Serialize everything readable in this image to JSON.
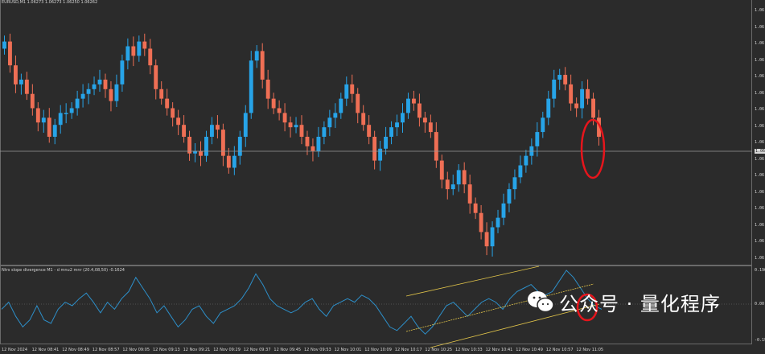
{
  "chart_header": {
    "symbol_line": "EURUSD,M1  1.06273 1.06273 1.06250 1.06262"
  },
  "indicator_header": {
    "text": "Ntrs slope divergence M1 - d mnu2 mnr (20.4,08,50) -0.1624"
  },
  "price_axis": {
    "labels": [
      "1.06",
      "1.06",
      "1.06",
      "1.06",
      "1.06",
      "1.06",
      "1.06",
      "1.06",
      "1.06",
      "1.06",
      "1.06",
      "1.06",
      "1.06",
      "1.06",
      "1.06",
      "1.06"
    ],
    "current_price_label": "1.06"
  },
  "indicator_axis": {
    "labels": [
      "0.196",
      "0.00",
      "-0.196"
    ]
  },
  "time_axis": {
    "labels": [
      "12 Nov 2024",
      "12 Nov 08:41",
      "12 Nov 08:49",
      "12 Nov 08:57",
      "12 Nov 09:05",
      "12 Nov 09:13",
      "12 Nov 09:21",
      "12 Nov 09:29",
      "12 Nov 09:37",
      "12 Nov 09:45",
      "12 Nov 09:53",
      "12 Nov 10:01",
      "12 Nov 10:09",
      "12 Nov 10:17",
      "12 Nov 10:25",
      "12 Nov 10:33",
      "12 Nov 10:41",
      "12 Nov 10:49",
      "12 Nov 10:57",
      "12 Nov 11:05"
    ]
  },
  "watermark": {
    "text": "公众号 · 量化程序"
  },
  "colors": {
    "bull": "#27a4e8",
    "bear": "#ef6f55",
    "indicator_line": "#2d8fc9",
    "trend_line": "#e2c54a",
    "highlight": "#e6151c",
    "price_line": "#9a9a9a"
  },
  "chart_data": {
    "type": "candlestick",
    "symbol": "EURUSD",
    "timeframe": "M1",
    "closes_normalized": [
      0.9,
      0.8,
      0.72,
      0.74,
      0.68,
      0.62,
      0.56,
      0.58,
      0.5,
      0.55,
      0.6,
      0.6,
      0.62,
      0.66,
      0.68,
      0.7,
      0.72,
      0.74,
      0.7,
      0.65,
      0.72,
      0.82,
      0.88,
      0.84,
      0.9,
      0.87,
      0.8,
      0.7,
      0.66,
      0.62,
      0.58,
      0.55,
      0.5,
      0.43,
      0.44,
      0.42,
      0.5,
      0.55,
      0.53,
      0.42,
      0.37,
      0.42,
      0.5,
      0.6,
      0.82,
      0.86,
      0.74,
      0.66,
      0.62,
      0.6,
      0.56,
      0.54,
      0.55,
      0.5,
      0.46,
      0.44,
      0.5,
      0.54,
      0.58,
      0.6,
      0.66,
      0.72,
      0.68,
      0.6,
      0.55,
      0.5,
      0.4,
      0.45,
      0.5,
      0.54,
      0.56,
      0.6,
      0.66,
      0.64,
      0.58,
      0.56,
      0.52,
      0.4,
      0.32,
      0.28,
      0.3,
      0.36,
      0.3,
      0.22,
      0.18,
      0.1,
      0.04,
      0.12,
      0.16,
      0.22,
      0.28,
      0.33,
      0.38,
      0.42,
      0.46,
      0.52,
      0.58,
      0.66,
      0.74,
      0.76,
      0.72,
      0.64,
      0.62,
      0.7,
      0.66,
      0.58,
      0.5
    ],
    "indicator_normalized": [
      0.45,
      0.55,
      0.35,
      0.2,
      0.3,
      0.5,
      0.3,
      0.25,
      0.45,
      0.55,
      0.5,
      0.6,
      0.68,
      0.55,
      0.4,
      0.55,
      0.45,
      0.6,
      0.7,
      0.9,
      0.75,
      0.6,
      0.4,
      0.5,
      0.35,
      0.2,
      0.3,
      0.45,
      0.5,
      0.35,
      0.25,
      0.4,
      0.45,
      0.5,
      0.6,
      0.75,
      0.95,
      0.8,
      0.6,
      0.5,
      0.45,
      0.4,
      0.45,
      0.55,
      0.6,
      0.45,
      0.35,
      0.5,
      0.55,
      0.6,
      0.55,
      0.65,
      0.6,
      0.5,
      0.35,
      0.2,
      0.15,
      0.25,
      0.35,
      0.2,
      0.1,
      0.2,
      0.35,
      0.5,
      0.55,
      0.45,
      0.35,
      0.45,
      0.55,
      0.6,
      0.55,
      0.45,
      0.6,
      0.7,
      0.75,
      0.8,
      0.7,
      0.65,
      0.7,
      0.85,
      1.0,
      0.9,
      0.75,
      0.6,
      0.5,
      0.45
    ]
  }
}
